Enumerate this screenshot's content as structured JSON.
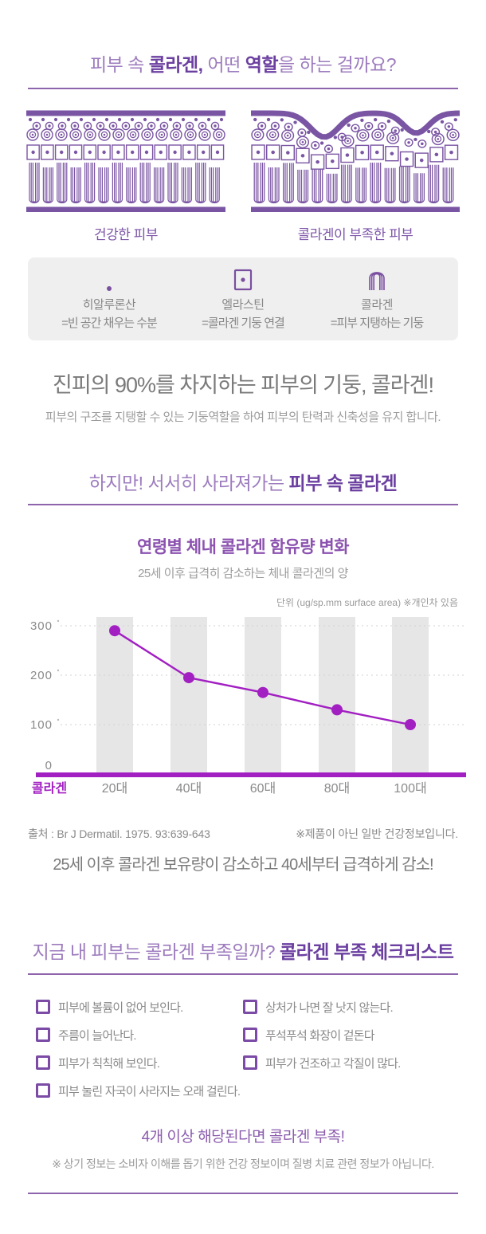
{
  "colors": {
    "title_purple": "#9d7cbe",
    "bold_purple": "#6b3fa0",
    "illustration_purple": "#7a55a3",
    "chart_magenta": "#a21fc2",
    "chart_title_purple": "#8c52b0",
    "text_gray": "#8a8a8a",
    "bar_gray": "#e6e6e6",
    "legend_box_gray": "#efefef",
    "checkbox_purple": "#7b4ba6"
  },
  "header": {
    "title_pre": "피부 속 ",
    "title_bold1": "콜라겐,",
    "title_mid": " 어떤 ",
    "title_bold2": "역할",
    "title_post": "을 하는 걸까요?"
  },
  "skin_comparison": {
    "healthy_label": "건강한 피부",
    "deficient_label": "콜라겐이 부족한 피부"
  },
  "legend": {
    "items": [
      {
        "icon": "hyaluronic-acid-dot-icon",
        "name": "히알루론산",
        "desc": "=빈 공간 채우는 수분"
      },
      {
        "icon": "elastin-square-icon",
        "name": "엘라스틴",
        "desc": "=콜라겐 기둥 연결"
      },
      {
        "icon": "collagen-arch-icon",
        "name": "콜라겐",
        "desc": "=피부 지탱하는 기둥"
      }
    ]
  },
  "role_section": {
    "headline": "진피의 90%를 차지하는 피부의 기둥, 콜라겐!",
    "subtext": "피부의 구조를 지탱할 수 있는 기둥역할을 하여 피부의 탄력과 신축성을 유지 합니다."
  },
  "decline_section": {
    "title_regular": "하지만! 서서히 사라져가는 ",
    "title_bold": "피부 속 콜라겐"
  },
  "chart_data": {
    "type": "line",
    "title": "연령별 체내 콜라겐 함유량 변화",
    "subtitle": "25세 이후 급격히 감소하는 체내 콜라겐의 양",
    "unit_note": "단위 (ug/sp.mm surface area) ※개인차 있음",
    "categories": [
      "20대",
      "40대",
      "60대",
      "80대",
      "100대"
    ],
    "values": [
      290,
      195,
      165,
      130,
      100
    ],
    "series_label": "콜라겐",
    "yticks": [
      0,
      100,
      200,
      300
    ],
    "ylim": [
      0,
      320
    ],
    "grid": "dotted-horizontal",
    "background_bars": true,
    "legend_position": "bottom-left"
  },
  "chart_footer": {
    "source": "출처 : Br J Dermatil. 1975. 93:639-643",
    "note": "※제품이 아닌 일반 건강정보입니다.",
    "conclusion": "25세 이후 콜라겐 보유량이 감소하고 40세부터 급격하게 감소!"
  },
  "checklist": {
    "title_regular": "지금 내 피부는 콜라겐 부족일까? ",
    "title_bold": "콜라겐 부족 체크리스트",
    "left_items": [
      "피부에 볼륨이 없어 보인다.",
      "주름이 늘어난다.",
      "피부가 칙칙해 보인다.",
      "피부 눌린 자국이 사라지는 오래 걸린다."
    ],
    "right_items": [
      "상처가 나면 잘 낫지 않는다.",
      "푸석푸석 화장이 겉돈다",
      "피부가 건조하고 각질이 많다."
    ],
    "result": "4개 이상 해당된다면 콜라겐 부족!",
    "disclaimer": "※ 상기 정보는 소비자 이해를 돕기 위한 건강 정보이며 질병 치료 관련 정보가 아닙니다."
  }
}
